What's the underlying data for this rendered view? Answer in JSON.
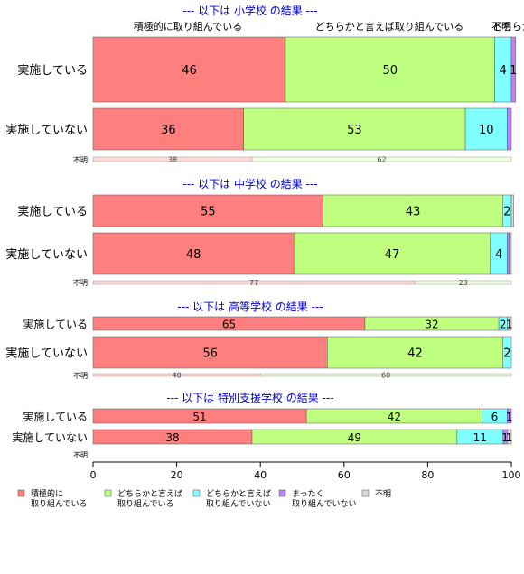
{
  "colors": {
    "c1": "#FF7F7F",
    "c2": "#BFFF7F",
    "c3": "#7FFFFF",
    "c4": "#BF7FFF",
    "c5": "#D9D9D9",
    "title": "#0000CC",
    "axis": "#000000"
  },
  "column_headers": [
    "積極的に取り組んでいる",
    "どちらかと言えば取り組んでいる",
    "どちらかと言えば取り組んでいない",
    "不明"
  ],
  "legend": [
    {
      "key": "c1",
      "label": [
        "積極的に",
        "取り組んでいる"
      ]
    },
    {
      "key": "c2",
      "label": [
        "どちらかと言えば",
        "取り組んでいる"
      ]
    },
    {
      "key": "c3",
      "label": [
        "どちらかと言えば",
        "取り組んでいない"
      ]
    },
    {
      "key": "c4",
      "label": [
        "まったく",
        "取り組んでいない"
      ]
    },
    {
      "key": "c5",
      "label": [
        "不明"
      ]
    }
  ],
  "chart_data": {
    "type": "bar",
    "orientation": "horizontal",
    "stacked": true,
    "xlim": [
      0,
      100
    ],
    "xticks": [
      0,
      20,
      40,
      60,
      80,
      100
    ],
    "grid": false,
    "legend_position": "bottom",
    "series_names": [
      "積極的に取り組んでいる",
      "どちらかと言えば取り組んでいる",
      "どちらかと言えば取り組んでいない",
      "まったく取り組んでいない",
      "不明"
    ],
    "panels": [
      {
        "title": "--- 以下は 小学校 の結果 ---",
        "rows": [
          {
            "label": "実施している",
            "values": [
              46,
              50,
              4,
              1,
              0
            ],
            "labels": [
              "46",
              "50",
              "4",
              "1",
              ""
            ]
          },
          {
            "label": "実施していない",
            "values": [
              36,
              53,
              10,
              1,
              0
            ],
            "labels": [
              "36",
              "53",
              "10",
              "",
              ""
            ]
          }
        ],
        "unknown": {
          "label": "不明",
          "values": [
            38,
            62
          ],
          "labels": [
            "38",
            "62"
          ]
        }
      },
      {
        "title": "--- 以下は 中学校 の結果 ---",
        "rows": [
          {
            "label": "実施している",
            "values": [
              55,
              43,
              2,
              0,
              0.6
            ],
            "labels": [
              "55",
              "43",
              "2",
              "",
              ""
            ]
          },
          {
            "label": "実施していない",
            "values": [
              48,
              47,
              4,
              0.5,
              0.5
            ],
            "labels": [
              "48",
              "47",
              "4",
              "",
              ""
            ]
          }
        ],
        "unknown": {
          "label": "不明",
          "values": [
            77,
            23
          ],
          "labels": [
            "77",
            "23"
          ]
        }
      },
      {
        "title": "--- 以下は 高等学校 の結果 ---",
        "rows": [
          {
            "label": "実施している",
            "values": [
              65,
              32,
              2,
              0,
              1
            ],
            "labels": [
              "65",
              "32",
              "2",
              "",
              "1"
            ]
          },
          {
            "label": "実施していない",
            "values": [
              56,
              42,
              2,
              0,
              0
            ],
            "labels": [
              "56",
              "42",
              "2",
              "",
              ""
            ]
          }
        ],
        "unknown": {
          "label": "不明",
          "values": [
            40,
            60
          ],
          "labels": [
            "40",
            "60"
          ]
        }
      },
      {
        "title": "--- 以下は 特別支援学校 の結果 ---",
        "rows": [
          {
            "label": "実施している",
            "values": [
              51,
              42,
              6,
              1,
              0
            ],
            "labels": [
              "51",
              "42",
              "6",
              "1",
              ""
            ]
          },
          {
            "label": "実施していない",
            "values": [
              38,
              49,
              11,
              1,
              1
            ],
            "labels": [
              "38",
              "49",
              "11",
              "1",
              "1"
            ]
          }
        ],
        "unknown": {
          "label": "不明",
          "values": [],
          "labels": []
        }
      }
    ]
  }
}
